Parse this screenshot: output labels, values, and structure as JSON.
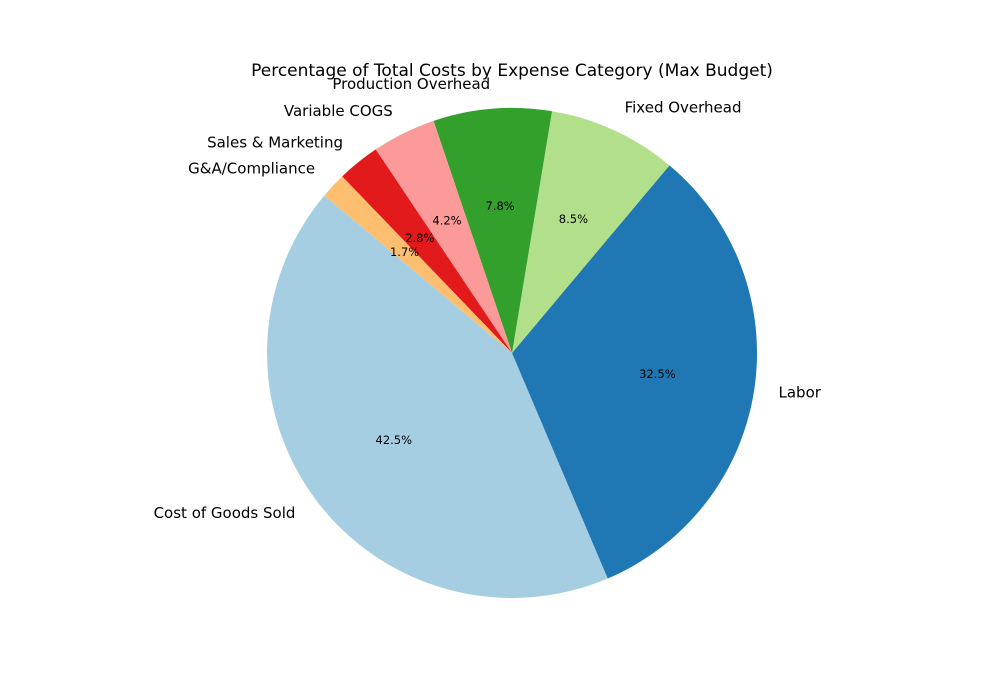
{
  "chart_data": {
    "type": "pie",
    "title": "Percentage of Total Costs by Expense Category (Max Budget)",
    "categories": [
      "Cost of Goods Sold",
      "Labor",
      "Fixed Overhead",
      "Production Overhead",
      "Variable COGS",
      "Sales & Marketing",
      "G&A/Compliance"
    ],
    "values": [
      42.5,
      32.5,
      8.5,
      7.8,
      4.2,
      2.8,
      1.7
    ],
    "value_labels": [
      "42.5%",
      "32.5%",
      "8.5%",
      "7.8%",
      "4.2%",
      "2.8%",
      "1.7%"
    ],
    "colors": [
      "#a6cee3",
      "#1f78b4",
      "#b2df8a",
      "#33a02c",
      "#fb9a99",
      "#e31a1c",
      "#fdbf6f"
    ],
    "start_angle_deg": 140,
    "direction": "counterclockwise",
    "legend": "none"
  }
}
